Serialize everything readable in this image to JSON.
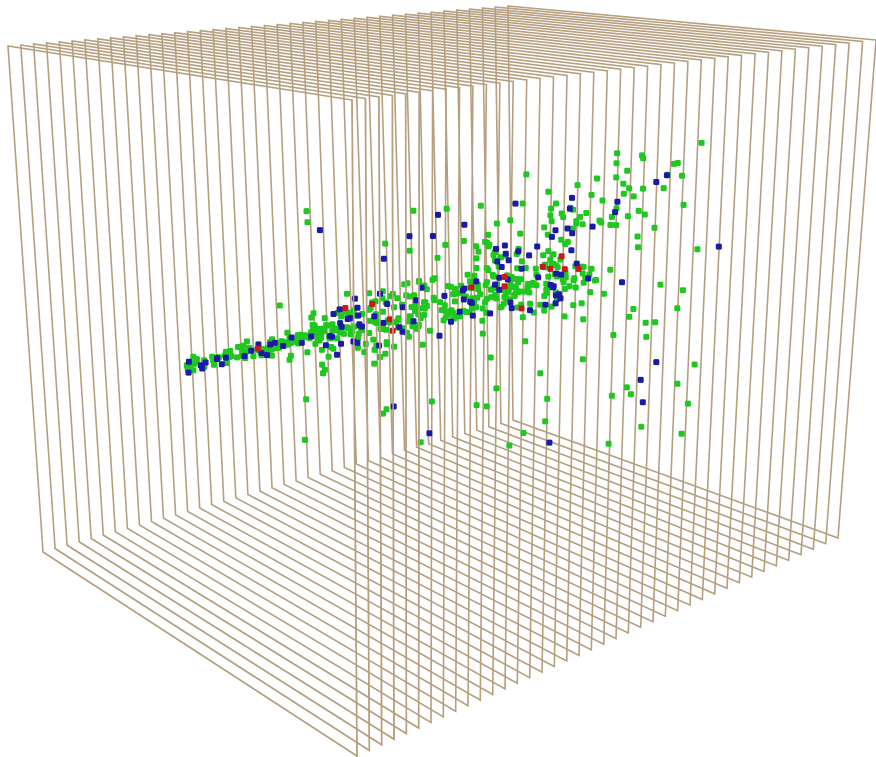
{
  "colors": {
    "background": "#ffffff",
    "plane_stroke": "#b59f7f",
    "hit_green": "#1fc81f",
    "hit_blue": "#1a1aa8",
    "hit_red": "#c81a1a"
  },
  "planes": {
    "count": 40
  },
  "hits": {
    "series": [
      {
        "color_key": "hit_green",
        "count": 520
      },
      {
        "color_key": "hit_blue",
        "count": 120
      },
      {
        "color_key": "hit_red",
        "count": 14
      }
    ]
  }
}
